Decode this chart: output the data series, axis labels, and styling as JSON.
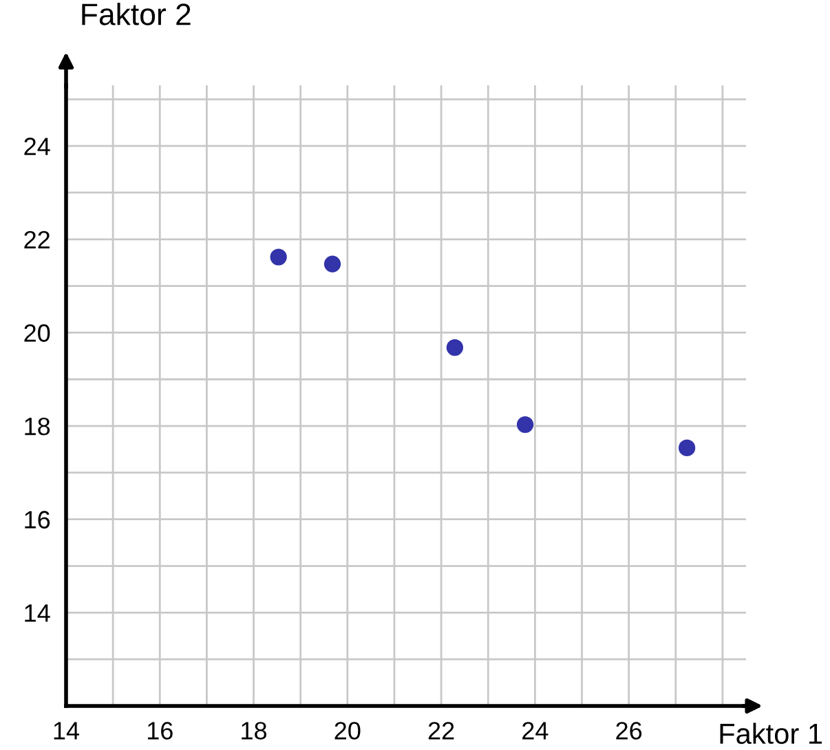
{
  "chart_data": {
    "type": "scatter",
    "xlabel": "Faktor 1",
    "ylabel": "Faktor 2",
    "x": [
      18.53,
      19.68,
      22.29,
      23.79,
      27.24
    ],
    "series": [
      {
        "color": "#3333aa",
        "values": [
          21.62,
          21.47,
          19.68,
          18.03,
          17.53
        ]
      }
    ],
    "marker": "circle",
    "grid": true,
    "xlim": [
      14,
      28.5
    ],
    "ylim": [
      12,
      25.3
    ],
    "xticks": [
      14,
      {
        "value": 15,
        "label": null
      },
      16,
      {
        "value": 17,
        "label": null
      },
      18,
      {
        "value": 19,
        "label": null
      },
      20,
      {
        "value": 21,
        "label": null
      },
      22,
      {
        "value": 23,
        "label": null
      },
      24,
      {
        "value": 25,
        "label": null
      },
      26,
      {
        "value": 27,
        "label": null
      },
      {
        "value": 28,
        "label": null
      }
    ],
    "yticks": [
      {
        "value": 12,
        "label": null
      },
      {
        "value": 13,
        "label": null
      },
      14,
      {
        "value": 15,
        "label": null
      },
      16,
      {
        "value": 17,
        "label": null
      },
      18,
      {
        "value": 19,
        "label": null
      },
      20,
      {
        "value": 21,
        "label": null
      },
      22,
      {
        "value": 23,
        "label": null
      },
      24,
      {
        "value": 25,
        "label": null
      }
    ]
  }
}
